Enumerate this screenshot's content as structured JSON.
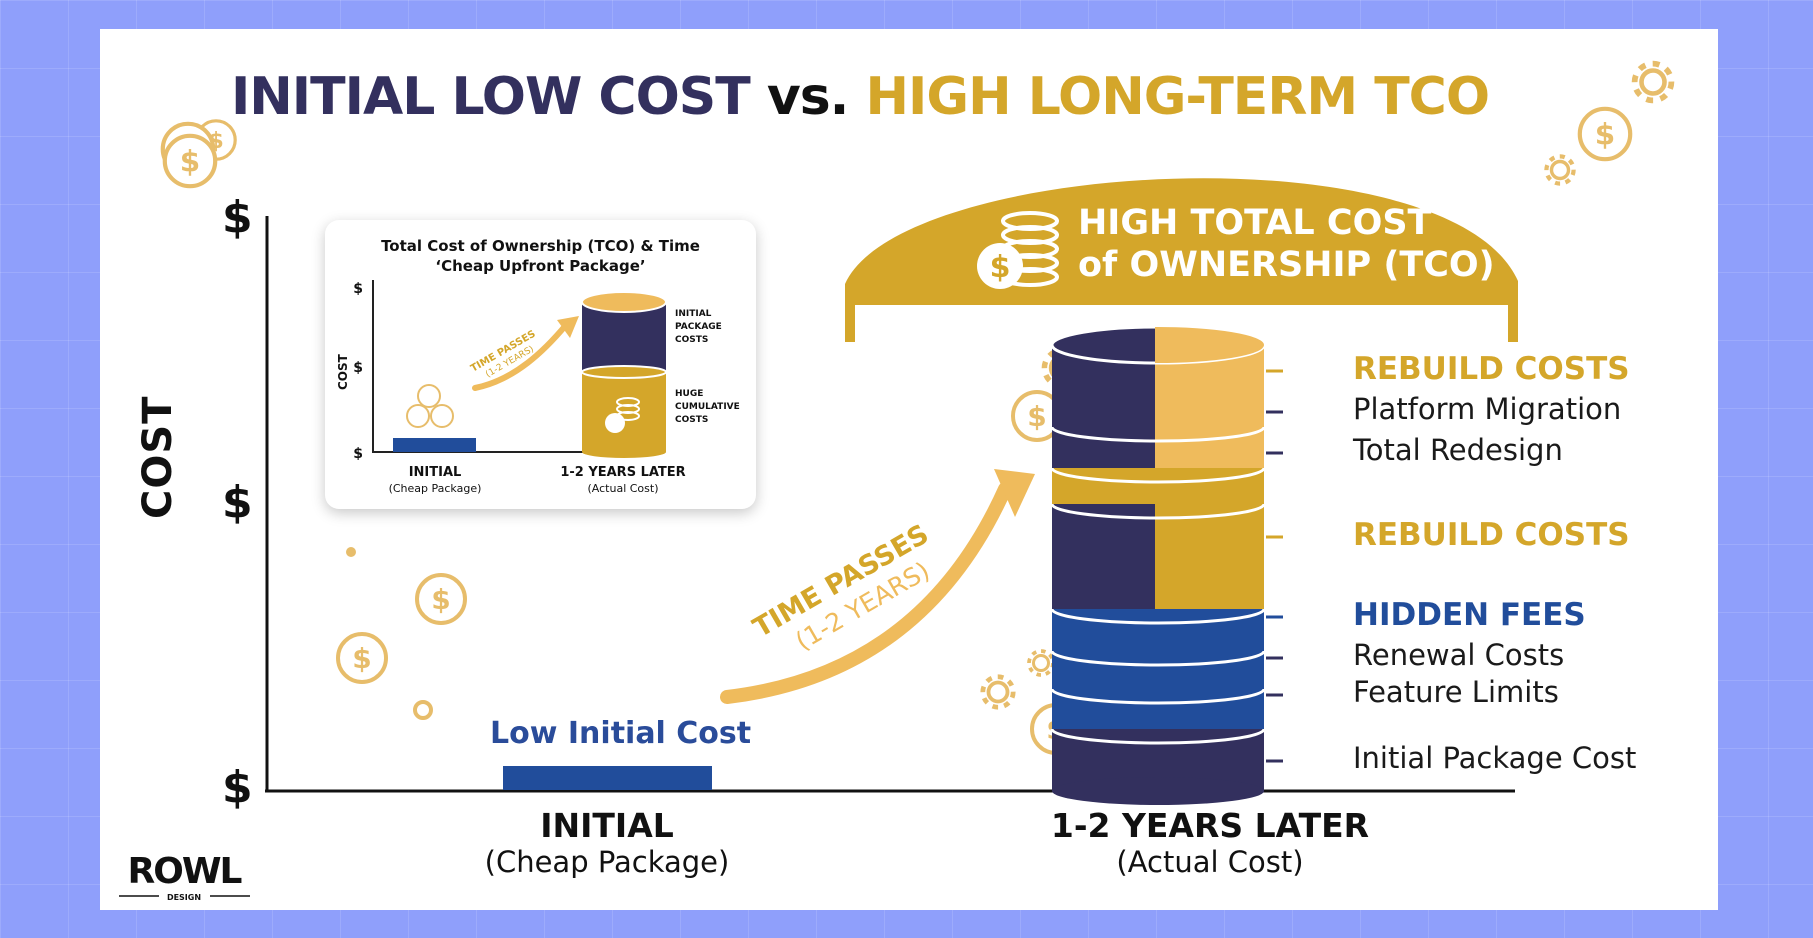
{
  "title": {
    "part1": "INITIAL LOW COST",
    "part2": "vs.",
    "part3": "HIGH LONG-TERM TCO"
  },
  "colors": {
    "navy": "#33305e",
    "gold": "#d4a62a",
    "light_gold": "#efbb5c",
    "blue": "#214d9b",
    "background": "#8f9ffb"
  },
  "axis": {
    "y_title": "COST",
    "y_ticks": [
      "$",
      "$",
      "$"
    ]
  },
  "chart_data": {
    "type": "bar",
    "categories": [
      {
        "label": "INITIAL",
        "sublabel": "(Cheap Package)"
      },
      {
        "label": "1-2 YEARS LATER",
        "sublabel": "(Actual Cost)"
      }
    ],
    "bar_annotations": {
      "initial": "Low Initial Cost"
    },
    "banner": "HIGH TOTAL COST of OWNERSHIP (TCO)",
    "arrow": {
      "line1": "TIME PASSES",
      "line2": "(1-2 YEARS)"
    },
    "stack_labels": [
      {
        "text": "REBUILD COSTS",
        "style": "major",
        "color": "#d4a62a"
      },
      {
        "text": "Platform Migration",
        "style": "minor"
      },
      {
        "text": "Total Redesign",
        "style": "minor"
      },
      {
        "text": "REBUILD COSTS",
        "style": "major",
        "color": "#d4a62a"
      },
      {
        "text": "HIDDEN FEES",
        "style": "major",
        "color": "#214d9b"
      },
      {
        "text": "Renewal Costs",
        "style": "minor"
      },
      {
        "text": "Feature Limits",
        "style": "minor"
      },
      {
        "text": "Initial Package Cost",
        "style": "minor"
      }
    ]
  },
  "inset": {
    "title_line1": "Total Cost of Ownership (TCO) & Time",
    "title_line2": "‘Cheap Upfront Package’",
    "y_title": "COST",
    "y_ticks": [
      "$",
      "$",
      "$"
    ],
    "arrow_line1": "TIME PASSES",
    "arrow_line2": "(1-2 YEARS)",
    "label_top": [
      "INITIAL",
      "PACKAGE",
      "COSTS"
    ],
    "label_bottom": [
      "HUGE",
      "CUMULATIVE",
      "COSTS"
    ],
    "x_main": [
      "INITIAL",
      "1-2 YEARS LATER"
    ],
    "x_sub": [
      "(Cheap Package)",
      "(Actual Cost)"
    ]
  },
  "logo": {
    "word": "ROWL",
    "sub": "DESIGN"
  }
}
